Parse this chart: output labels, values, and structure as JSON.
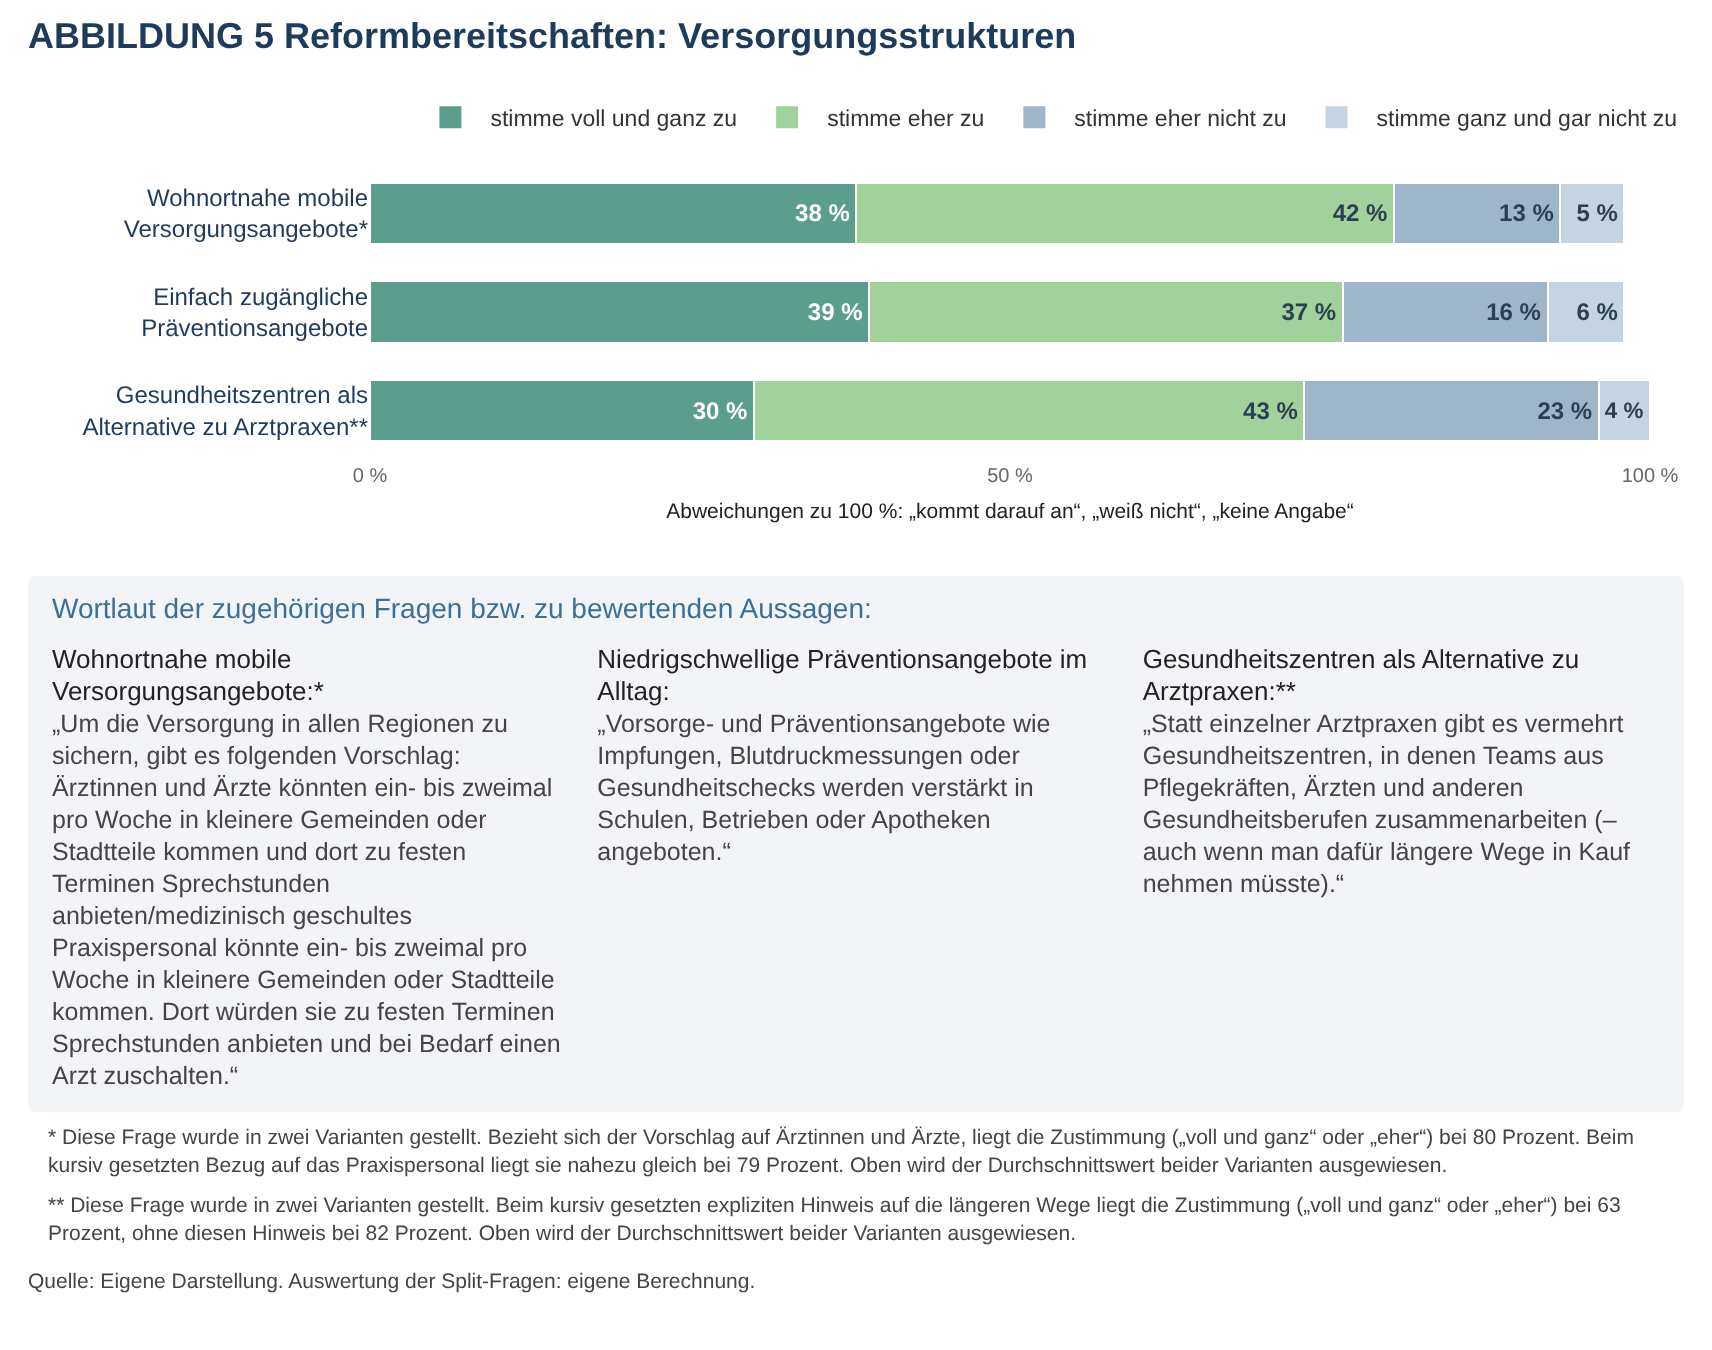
{
  "chart_data": {
    "type": "bar",
    "orientation": "horizontal",
    "stacked": true,
    "title": "ABBILDUNG 5 Reformbereitschaften: Versorgungsstrukturen",
    "xlabel": "Abweichungen zu 100 %: „kommt darauf an“, „weiß nicht“, „keine Angabe“",
    "categories": [
      "Wohnortnahe mobile Versorgungsangebote*",
      "Einfach zugängliche Präventionsangebote",
      "Gesundheitszentren als Alternative zu Arztpraxen**"
    ],
    "series": [
      {
        "name": "stimme voll und ganz zu",
        "color": "#5c9e8d",
        "values": [
          38,
          39,
          30
        ],
        "value_labels": [
          "38 %",
          "39 %",
          "30 %"
        ]
      },
      {
        "name": "stimme eher zu",
        "color": "#a2d29b",
        "values": [
          42,
          37,
          43
        ],
        "value_labels": [
          "42 %",
          "37 %",
          "43 %"
        ]
      },
      {
        "name": "stimme eher nicht zu",
        "color": "#9fb5ca",
        "values": [
          13,
          16,
          23
        ],
        "value_labels": [
          "13 %",
          "16 %",
          "23 %"
        ]
      },
      {
        "name": "stimme ganz und gar nicht zu",
        "color": "#c6d3e0",
        "values": [
          5,
          6,
          4
        ],
        "value_labels": [
          "5 %",
          "6 %",
          "4 %"
        ]
      }
    ],
    "xlim": [
      0,
      100
    ],
    "xticks": [
      {
        "value": 0,
        "label": "0 %"
      },
      {
        "value": 50,
        "label": "50 %"
      },
      {
        "value": 100,
        "label": "100 %"
      }
    ],
    "grid": false,
    "legend": "top",
    "annotations": [
      "Wortlaut der zugehörigen Fragen bzw. zu bewertenden Aussagen:",
      "Wohnortnahe mobile Versorgungsangebote:*",
      "„Um die Versorgung in allen Regionen zu sichern, gibt es folgenden Vorschlag: Ärztinnen und Ärzte könnten ein- bis zweimal pro Woche in kleinere Gemeinden oder Stadtteile kommen und dort zu festen Terminen Sprechstunden anbieten/medizinisch geschultes Praxispersonal könnte ein- bis zweimal pro Woche in kleinere Gemeinden oder Stadtteile kommen. Dort würden sie zu festen Terminen Sprechstunden anbieten und bei Bedarf einen Arzt zuschalten.“",
      "Niedrigschwellige Präventionsangebote im Alltag:",
      "„Vorsorge- und Präventionsangebote wie Impfungen, Blutdruckmessungen oder Gesundheitschecks werden verstärkt in Schulen, Betrieben oder Apotheken angeboten.“",
      "Gesundheitszentren als Alternative zu Arztpraxen:**",
      "„Statt einzelner Arztpraxen gibt es vermehrt Gesundheitszentren, in denen Teams aus Pflegekräften, Ärzten und anderen Gesundheitsberufen zusammenarbeiten (– auch wenn man dafür längere Wege in Kauf nehmen müsste).“",
      "* Diese Frage wurde in zwei Varianten gestellt. Bezieht sich der Vorschlag auf Ärztinnen und Ärzte, liegt die Zustimmung („voll und ganz“ oder „eher“) bei 80 Prozent. Beim kursiv gesetzten Bezug auf das Praxispersonal liegt sie nahezu gleich bei 79 Prozent. Oben wird der Durchschnittswert beider Varianten ausgewiesen.",
      "** Diese Frage wurde in zwei Varianten gestellt. Beim kursiv gesetzten expliziten Hinweis auf die längeren Wege liegt die Zustimmung („voll und ganz“ oder „eher“) bei 63 Prozent, ohne diesen Hinweis bei 82 Prozent. Oben wird der Durchschnittswert beider Varianten ausgewiesen.",
      "Quelle: Eigene Darstellung. Auswertung der Split-Fragen: eigene Berechnung."
    ]
  }
}
